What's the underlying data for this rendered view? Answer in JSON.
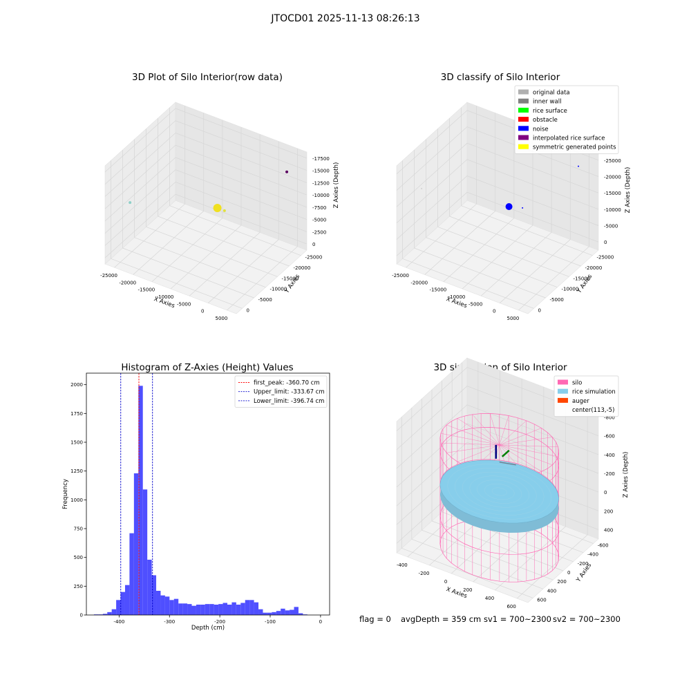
{
  "suptitle": "JTOCD01 2025-11-13 08:26:13",
  "status_line": {
    "flag": "flag = 0",
    "avg_depth": "avgDepth = 359 cm",
    "sv1": "sv1 = 700~2300",
    "sv2": "sv2 = 700~2300"
  },
  "colors": {
    "histogram": "#4b4bff",
    "first_peak": "#ff0000",
    "limits": "#0000cc",
    "silo": "#ff69b4",
    "rice": "#87ceeb",
    "auger": "#ff4500",
    "grid_pane": "#f2f2f2"
  },
  "chart_data": [
    {
      "id": "raw",
      "type": "scatter",
      "title": "3D Plot of Silo Interior(row data)",
      "xlabel": "X Axies",
      "ylabel": "Y Axies",
      "zlabel": "Z Axies (Depth)",
      "xticks": [
        "-25000",
        "-20000",
        "-15000",
        "-10000",
        "-5000",
        "0",
        "5000"
      ],
      "yticks": [
        "0",
        "-5000",
        "-10000",
        "-15000",
        "-20000",
        "-25000"
      ],
      "zticks": [
        "0",
        "-2500",
        "-5000",
        "-7500",
        "-10000",
        "-12500",
        "-15000",
        "-17500"
      ],
      "xlim": [
        -27000,
        6000
      ],
      "ylim": [
        -27000,
        2000
      ],
      "zlim": [
        -19000,
        1000
      ],
      "points": [
        {
          "x": -25000,
          "y": -5000,
          "z": -9000,
          "color": "#8fd0c8"
        },
        {
          "x": 2500,
          "y": -24500,
          "z": -3000,
          "color": "#5a0060"
        },
        {
          "x": 200,
          "y": 300,
          "z": 0,
          "color": "#f0e020",
          "big": true
        },
        {
          "x": 1500,
          "y": -500,
          "z": -500,
          "color": "#e0e040"
        }
      ]
    },
    {
      "id": "classify",
      "type": "scatter",
      "title": "3D classify of Silo Interior",
      "xlabel": "X Axies",
      "ylabel": "Y Axies",
      "zlabel": "Z Axies (Depth)",
      "xticks": [
        "-25000",
        "-20000",
        "-15000",
        "-10000",
        "-5000",
        "0",
        "5000"
      ],
      "yticks": [
        "0",
        "-5000",
        "-10000",
        "-15000",
        "-20000",
        "-25000"
      ],
      "zticks": [
        "0",
        "-5000",
        "-10000",
        "-15000",
        "-20000",
        "-25000"
      ],
      "xlim": [
        -27000,
        6000
      ],
      "ylim": [
        -27000,
        2000
      ],
      "zlim": [
        -27000,
        1000
      ],
      "legend_position": "upper right",
      "legend": [
        {
          "label": "original data",
          "color": "#b0b0b0"
        },
        {
          "label": "inner wall",
          "color": "#808080"
        },
        {
          "label": "rice surface",
          "color": "#00ff00"
        },
        {
          "label": "obstacle",
          "color": "#ff0000"
        },
        {
          "label": "noise",
          "color": "#0000ff"
        },
        {
          "label": "interpolated rice surface",
          "color": "#800080"
        },
        {
          "label": "symmetric generated points",
          "color": "#ffff00"
        }
      ],
      "points": [
        {
          "x": 200,
          "y": 300,
          "z": 0,
          "color": "#0000ff",
          "big": true
        },
        {
          "x": 2500,
          "y": -1500,
          "z": -500,
          "color": "#0000ff"
        },
        {
          "x": 2500,
          "y": -24500,
          "z": -3000,
          "color": "#0000ff"
        },
        {
          "x": -25000,
          "y": -5000,
          "z": -9000,
          "color": "#d0d0d0"
        }
      ]
    },
    {
      "id": "hist",
      "type": "bar",
      "title": "Histogram of Z-Axies (Height) Values",
      "xlabel": "Depth (cm)",
      "ylabel": "Frequency",
      "xlim": [
        -465,
        18
      ],
      "ylim": [
        0,
        2100
      ],
      "xticks": [
        -400,
        -300,
        -200,
        -100,
        0
      ],
      "yticks": [
        0,
        250,
        500,
        750,
        1000,
        1250,
        1500,
        1750,
        2000
      ],
      "bin_start": -450,
      "bin_width": 8.83,
      "values": [
        5,
        5,
        10,
        25,
        50,
        130,
        200,
        260,
        710,
        1230,
        1990,
        1090,
        480,
        345,
        210,
        170,
        160,
        130,
        140,
        100,
        100,
        95,
        80,
        90,
        90,
        95,
        95,
        90,
        95,
        105,
        90,
        110,
        90,
        105,
        130,
        130,
        110,
        50,
        20,
        20,
        25,
        35,
        55,
        40,
        45,
        70,
        15,
        5
      ],
      "legend_position": "upper right",
      "lines": [
        {
          "label": "first_peak: -360.70 cm",
          "x": -360.7,
          "color": "#ff0000"
        },
        {
          "label": "Upper_limit: -333.67 cm",
          "x": -333.67,
          "color": "#0000cc"
        },
        {
          "label": "Lower_limit: -396.74 cm",
          "x": -396.74,
          "color": "#0000cc"
        }
      ]
    },
    {
      "id": "sim",
      "type": "scatter",
      "title": "3D simulation of Silo Interior",
      "xlabel": "X Axies",
      "ylabel": "Y Axies",
      "zlabel": "Z Axies (Depth)",
      "xticks": [
        "-400",
        "-200",
        "0",
        "200",
        "400",
        "600"
      ],
      "yticks": [
        "600",
        "400",
        "200",
        "0",
        "-200",
        "-400",
        "-600"
      ],
      "zticks": [
        "400",
        "200",
        "0",
        "-200",
        "-400",
        "-600",
        "-800"
      ],
      "xlim": [
        -520,
        720
      ],
      "ylim": [
        -650,
        660
      ],
      "zlim": [
        -950,
        480
      ],
      "legend_position": "upper right",
      "legend": [
        {
          "label": "silo",
          "color": "#ff69b4"
        },
        {
          "label": "rice simulation",
          "color": "#87ceeb"
        },
        {
          "label": "auger",
          "color": "#ff4500"
        },
        {
          "label": "center(113,-5)",
          "color": ""
        }
      ],
      "silo": {
        "cx": 113,
        "cy": -5,
        "r": 500,
        "z_top": 150,
        "z_bottom": -1000
      },
      "rice": {
        "z": -359
      }
    }
  ]
}
